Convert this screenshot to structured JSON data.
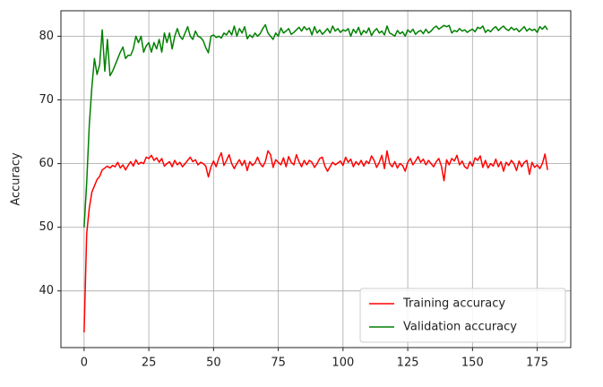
{
  "chart_data": {
    "type": "line",
    "ylabel": "Accuracy",
    "x": [
      0,
      1,
      2,
      3,
      4,
      5,
      6,
      7,
      8,
      9,
      10,
      11,
      12,
      13,
      14,
      15,
      16,
      17,
      18,
      19,
      20,
      21,
      22,
      23,
      24,
      25,
      26,
      27,
      28,
      29,
      30,
      31,
      32,
      33,
      34,
      35,
      36,
      37,
      38,
      39,
      40,
      41,
      42,
      43,
      44,
      45,
      46,
      47,
      48,
      49,
      50,
      51,
      52,
      53,
      54,
      55,
      56,
      57,
      58,
      59,
      60,
      61,
      62,
      63,
      64,
      65,
      66,
      67,
      68,
      69,
      70,
      71,
      72,
      73,
      74,
      75,
      76,
      77,
      78,
      79,
      80,
      81,
      82,
      83,
      84,
      85,
      86,
      87,
      88,
      89,
      90,
      91,
      92,
      93,
      94,
      95,
      96,
      97,
      98,
      99,
      100,
      101,
      102,
      103,
      104,
      105,
      106,
      107,
      108,
      109,
      110,
      111,
      112,
      113,
      114,
      115,
      116,
      117,
      118,
      119,
      120,
      121,
      122,
      123,
      124,
      125,
      126,
      127,
      128,
      129,
      130,
      131,
      132,
      133,
      134,
      135,
      136,
      137,
      138,
      139,
      140,
      141,
      142,
      143,
      144,
      145,
      146,
      147,
      148,
      149,
      150,
      151,
      152,
      153,
      154,
      155,
      156,
      157,
      158,
      159,
      160,
      161,
      162,
      163,
      164,
      165,
      166,
      167,
      168,
      169,
      170,
      171,
      172,
      173,
      174,
      175,
      176,
      177,
      178,
      179
    ],
    "series": [
      {
        "name": "Training accuracy",
        "color": "#ff0000",
        "values": [
          33.5,
          49,
          53,
          55.5,
          56.5,
          57.5,
          58,
          59,
          59.3,
          59.6,
          59.3,
          59.7,
          59.5,
          60.2,
          59.3,
          59.8,
          59,
          59.7,
          60.3,
          59.6,
          60.6,
          59.9,
          60.2,
          60,
          61,
          60.8,
          61.3,
          60.5,
          60.9,
          60.2,
          60.8,
          59.6,
          60,
          60.3,
          59.5,
          60.5,
          59.8,
          60.2,
          59.5,
          60,
          60.5,
          61,
          60.3,
          60.6,
          59.8,
          60.2,
          60,
          59.6,
          57.9,
          59.5,
          60.4,
          59.5,
          60.8,
          61.7,
          59.7,
          60.5,
          61.4,
          60,
          59.2,
          60,
          60.6,
          59.7,
          60.5,
          58.9,
          60.3,
          59.7,
          60.1,
          61,
          60,
          59.5,
          60.3,
          62,
          61.4,
          59.4,
          60.6,
          60.2,
          59.8,
          60.9,
          59.5,
          61.1,
          60.2,
          59.8,
          61.4,
          60.3,
          59.5,
          60.5,
          59.8,
          60.5,
          60.2,
          59.4,
          60,
          60.8,
          61,
          59.6,
          58.8,
          59.5,
          60.2,
          59.8,
          60.1,
          60.4,
          59.7,
          61,
          60.2,
          60.7,
          59.5,
          60.3,
          59.8,
          60.5,
          59.6,
          60.4,
          60,
          61.2,
          60.5,
          59.4,
          60.2,
          61.3,
          59.2,
          62,
          60,
          59.5,
          60.3,
          59.3,
          60,
          59.7,
          58.8,
          60.2,
          60.8,
          59.8,
          60.4,
          61.1,
          60.2,
          60.7,
          59.8,
          60.5,
          60,
          59.5,
          60.3,
          60.8,
          59.6,
          57.3,
          60.6,
          59.8,
          60.8,
          60.4,
          61.3,
          59.8,
          60.4,
          59.5,
          59.2,
          60.3,
          59.6,
          60.9,
          60.5,
          61.2,
          59.4,
          60.5,
          59.3,
          60,
          59.6,
          60.7,
          59.5,
          60.3,
          58.8,
          60.2,
          59.7,
          60.5,
          60,
          58.9,
          60.4,
          59.5,
          60.2,
          60.5,
          58.3,
          60.2,
          59.4,
          59.8,
          59.2,
          60,
          61.5,
          59
        ]
      },
      {
        "name": "Validation accuracy",
        "color": "#008000",
        "values": [
          50,
          57,
          66,
          72,
          76.5,
          74,
          75.5,
          81,
          74.5,
          79.5,
          73.8,
          74.5,
          75.5,
          76.5,
          77.5,
          78.3,
          76.5,
          77,
          77,
          78,
          80,
          79,
          80,
          77.5,
          78.5,
          79,
          77.5,
          79,
          78,
          79.5,
          77.5,
          80.5,
          79,
          80.5,
          78,
          80,
          81.2,
          80,
          79.5,
          80.5,
          81.5,
          80,
          79.5,
          80.8,
          80,
          79.8,
          79.3,
          78.2,
          77.4,
          80,
          80.2,
          79.8,
          80,
          79.7,
          80.5,
          80.2,
          80.9,
          80.2,
          81.6,
          80,
          81.2,
          80.5,
          81.5,
          79.6,
          80.2,
          79.8,
          80.5,
          80,
          80.4,
          81.2,
          81.8,
          80.5,
          80,
          79.5,
          80.5,
          80,
          81.3,
          80.5,
          80.8,
          81.2,
          80.3,
          80.6,
          81,
          81.4,
          80.8,
          81.5,
          81,
          81.3,
          80.2,
          81.5,
          80.5,
          81,
          80.3,
          80.7,
          81.2,
          80.5,
          81.6,
          80.8,
          81.2,
          80.6,
          81,
          80.8,
          81.2,
          80,
          81.1,
          80.5,
          81.4,
          80.2,
          80.9,
          80.5,
          81.3,
          80.1,
          80.8,
          81.2,
          80.5,
          80.8,
          80.2,
          81.6,
          80.5,
          80.3,
          80,
          80.9,
          80.4,
          80.7,
          80,
          81,
          80.6,
          81.1,
          80.3,
          80.7,
          80.9,
          80.4,
          81.1,
          80.5,
          80.8,
          81.3,
          81.6,
          81.1,
          81.4,
          81.7,
          81.5,
          81.7,
          80.5,
          80.9,
          80.7,
          81.2,
          80.8,
          81,
          80.6,
          80.9,
          81.1,
          80.7,
          81.4,
          81.2,
          81.6,
          80.6,
          81,
          80.7,
          81.2,
          81.5,
          80.9,
          81.3,
          81.6,
          81.1,
          80.9,
          81.4,
          81,
          81.2,
          80.7,
          81.1,
          81.5,
          80.8,
          81.2,
          80.9,
          81.1,
          80.6,
          81.5,
          81.1,
          81.6,
          81
        ]
      }
    ],
    "xlim": [
      -8.95,
      187.95
    ],
    "ylim": [
      31.1,
      84.0
    ],
    "xticks": [
      0,
      25,
      50,
      75,
      100,
      125,
      150,
      175
    ],
    "yticks": [
      40,
      50,
      60,
      70,
      80
    ],
    "grid": true,
    "legend": "lower right"
  }
}
